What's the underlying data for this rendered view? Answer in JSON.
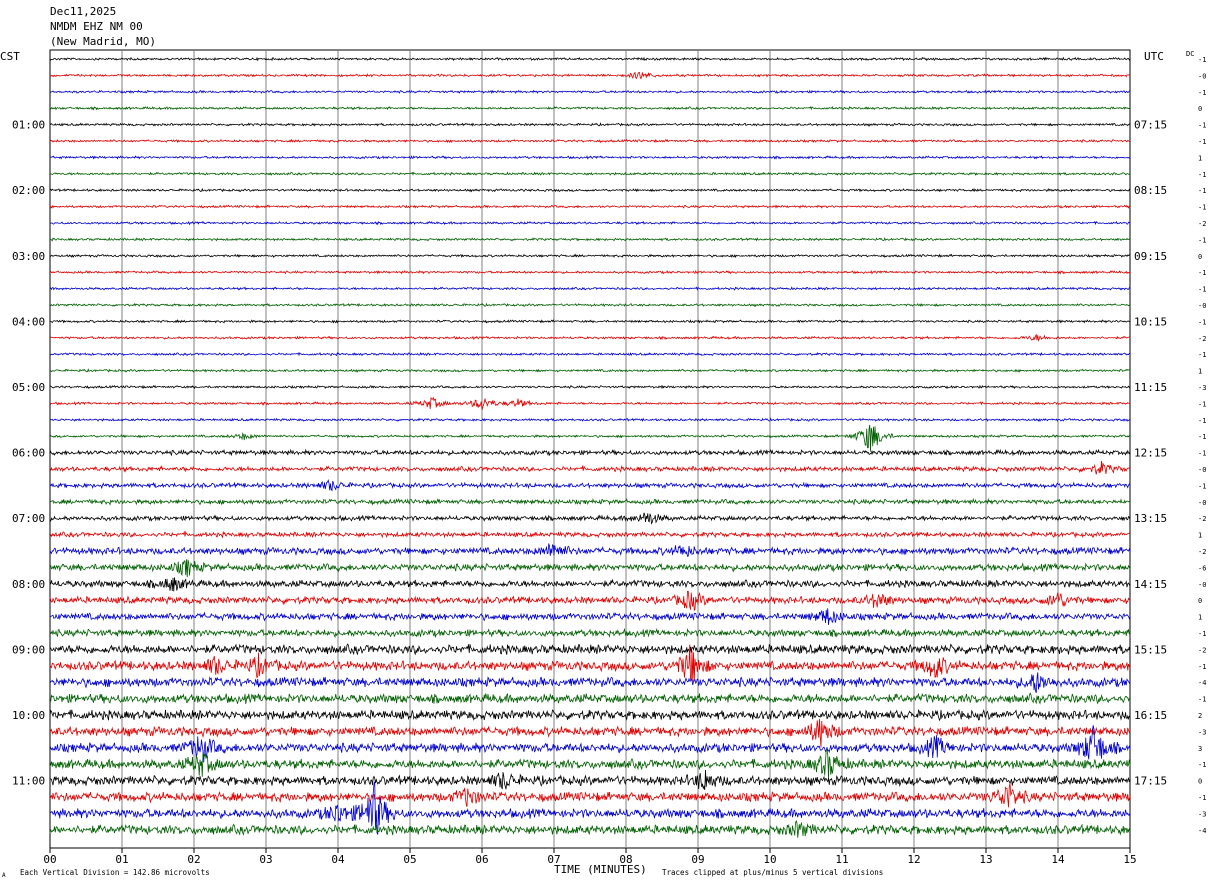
{
  "header": {
    "date": "Dec11,2025",
    "station": "NMDM EHZ NM 00",
    "location": "(New Madrid, MO)"
  },
  "labels": {
    "left_timezone": "CST",
    "right_timezone": "UTC",
    "dc_label": "DC",
    "x_axis_title": "TIME (MINUTES)",
    "scale_note": "Each Vertical Division =  142.86 microvolts",
    "clip_note": "Traces clipped at plus/minus 5 vertical divisions",
    "corner_mark": "A"
  },
  "colors": {
    "cycle": [
      "#000000",
      "#e00000",
      "#0000d0",
      "#006000"
    ],
    "grid": "#808080"
  },
  "chart_data": {
    "type": "line",
    "title": "",
    "xlabel": "TIME (MINUTES)",
    "ylabel": "",
    "xlim": [
      0,
      15
    ],
    "x_ticks": [
      "00",
      "01",
      "02",
      "03",
      "04",
      "05",
      "06",
      "07",
      "08",
      "09",
      "10",
      "11",
      "12",
      "13",
      "14",
      "15"
    ],
    "left_hour_labels": [
      "01:00",
      "02:00",
      "03:00",
      "04:00",
      "05:00",
      "06:00",
      "07:00",
      "08:00",
      "09:00",
      "10:00",
      "11:00"
    ],
    "right_hour_labels": [
      "07:15",
      "08:15",
      "09:15",
      "10:15",
      "11:15",
      "12:15",
      "13:15",
      "14:15",
      "15:15",
      "16:15",
      "17:15"
    ],
    "dc_offsets": [
      "-1",
      "-0",
      "-1",
      "0",
      "-1",
      "-1",
      "1",
      "-1",
      "-1",
      "-1",
      "-2",
      "-1",
      "0",
      "-1",
      "-1",
      "-0",
      "-1",
      "-2",
      "-1",
      "1",
      "-3",
      "-1",
      "-1",
      "-1",
      "-1",
      "-0",
      "-1",
      "-0",
      "-2",
      "1",
      "-2",
      "-6",
      "-0",
      "0",
      "1",
      "-1",
      "-2",
      "-1",
      "-4",
      "-1",
      "2",
      "-3",
      "3",
      "-1",
      "0",
      "-1",
      "-3",
      "-4"
    ],
    "trace_noise_levels": [
      1,
      1,
      1,
      1,
      1,
      1,
      1,
      1,
      1,
      1,
      1,
      1,
      1,
      1,
      1,
      1,
      1,
      1,
      1,
      1,
      1,
      1,
      1,
      1,
      2,
      2,
      2,
      2,
      2,
      2,
      3,
      3,
      3,
      3,
      3,
      3,
      4,
      4,
      4,
      4,
      4,
      4,
      4,
      4,
      4,
      4,
      4,
      4
    ],
    "events": [
      {
        "trace": 1,
        "minute": 8.2,
        "amp": 4
      },
      {
        "trace": 17,
        "minute": 13.7,
        "amp": 3
      },
      {
        "trace": 21,
        "minute": 5.3,
        "amp": 6
      },
      {
        "trace": 21,
        "minute": 6.0,
        "amp": 7
      },
      {
        "trace": 21,
        "minute": 6.5,
        "amp": 4
      },
      {
        "trace": 23,
        "minute": 2.7,
        "amp": 3
      },
      {
        "trace": 23,
        "minute": 11.4,
        "amp": 18
      },
      {
        "trace": 25,
        "minute": 14.6,
        "amp": 6
      },
      {
        "trace": 26,
        "minute": 3.9,
        "amp": 5
      },
      {
        "trace": 28,
        "minute": 8.3,
        "amp": 7
      },
      {
        "trace": 30,
        "minute": 7.0,
        "amp": 9
      },
      {
        "trace": 30,
        "minute": 8.8,
        "amp": 6
      },
      {
        "trace": 31,
        "minute": 1.9,
        "amp": 8
      },
      {
        "trace": 32,
        "minute": 1.7,
        "amp": 7
      },
      {
        "trace": 33,
        "minute": 8.9,
        "amp": 10
      },
      {
        "trace": 33,
        "minute": 11.5,
        "amp": 8
      },
      {
        "trace": 33,
        "minute": 14.0,
        "amp": 8
      },
      {
        "trace": 34,
        "minute": 10.8,
        "amp": 8
      },
      {
        "trace": 37,
        "minute": 2.3,
        "amp": 8
      },
      {
        "trace": 37,
        "minute": 2.9,
        "amp": 9
      },
      {
        "trace": 37,
        "minute": 8.9,
        "amp": 20
      },
      {
        "trace": 37,
        "minute": 12.3,
        "amp": 12
      },
      {
        "trace": 38,
        "minute": 13.7,
        "amp": 10
      },
      {
        "trace": 41,
        "minute": 10.7,
        "amp": 14
      },
      {
        "trace": 42,
        "minute": 2.1,
        "amp": 14
      },
      {
        "trace": 42,
        "minute": 12.3,
        "amp": 10
      },
      {
        "trace": 42,
        "minute": 14.5,
        "amp": 22
      },
      {
        "trace": 43,
        "minute": 2.1,
        "amp": 12
      },
      {
        "trace": 43,
        "minute": 10.8,
        "amp": 14
      },
      {
        "trace": 44,
        "minute": 6.3,
        "amp": 8
      },
      {
        "trace": 44,
        "minute": 9.1,
        "amp": 10
      },
      {
        "trace": 45,
        "minute": 5.8,
        "amp": 9
      },
      {
        "trace": 45,
        "minute": 13.3,
        "amp": 14
      },
      {
        "trace": 46,
        "minute": 4.0,
        "amp": 10
      },
      {
        "trace": 46,
        "minute": 4.5,
        "amp": 30
      },
      {
        "trace": 47,
        "minute": 10.4,
        "amp": 7
      }
    ]
  }
}
